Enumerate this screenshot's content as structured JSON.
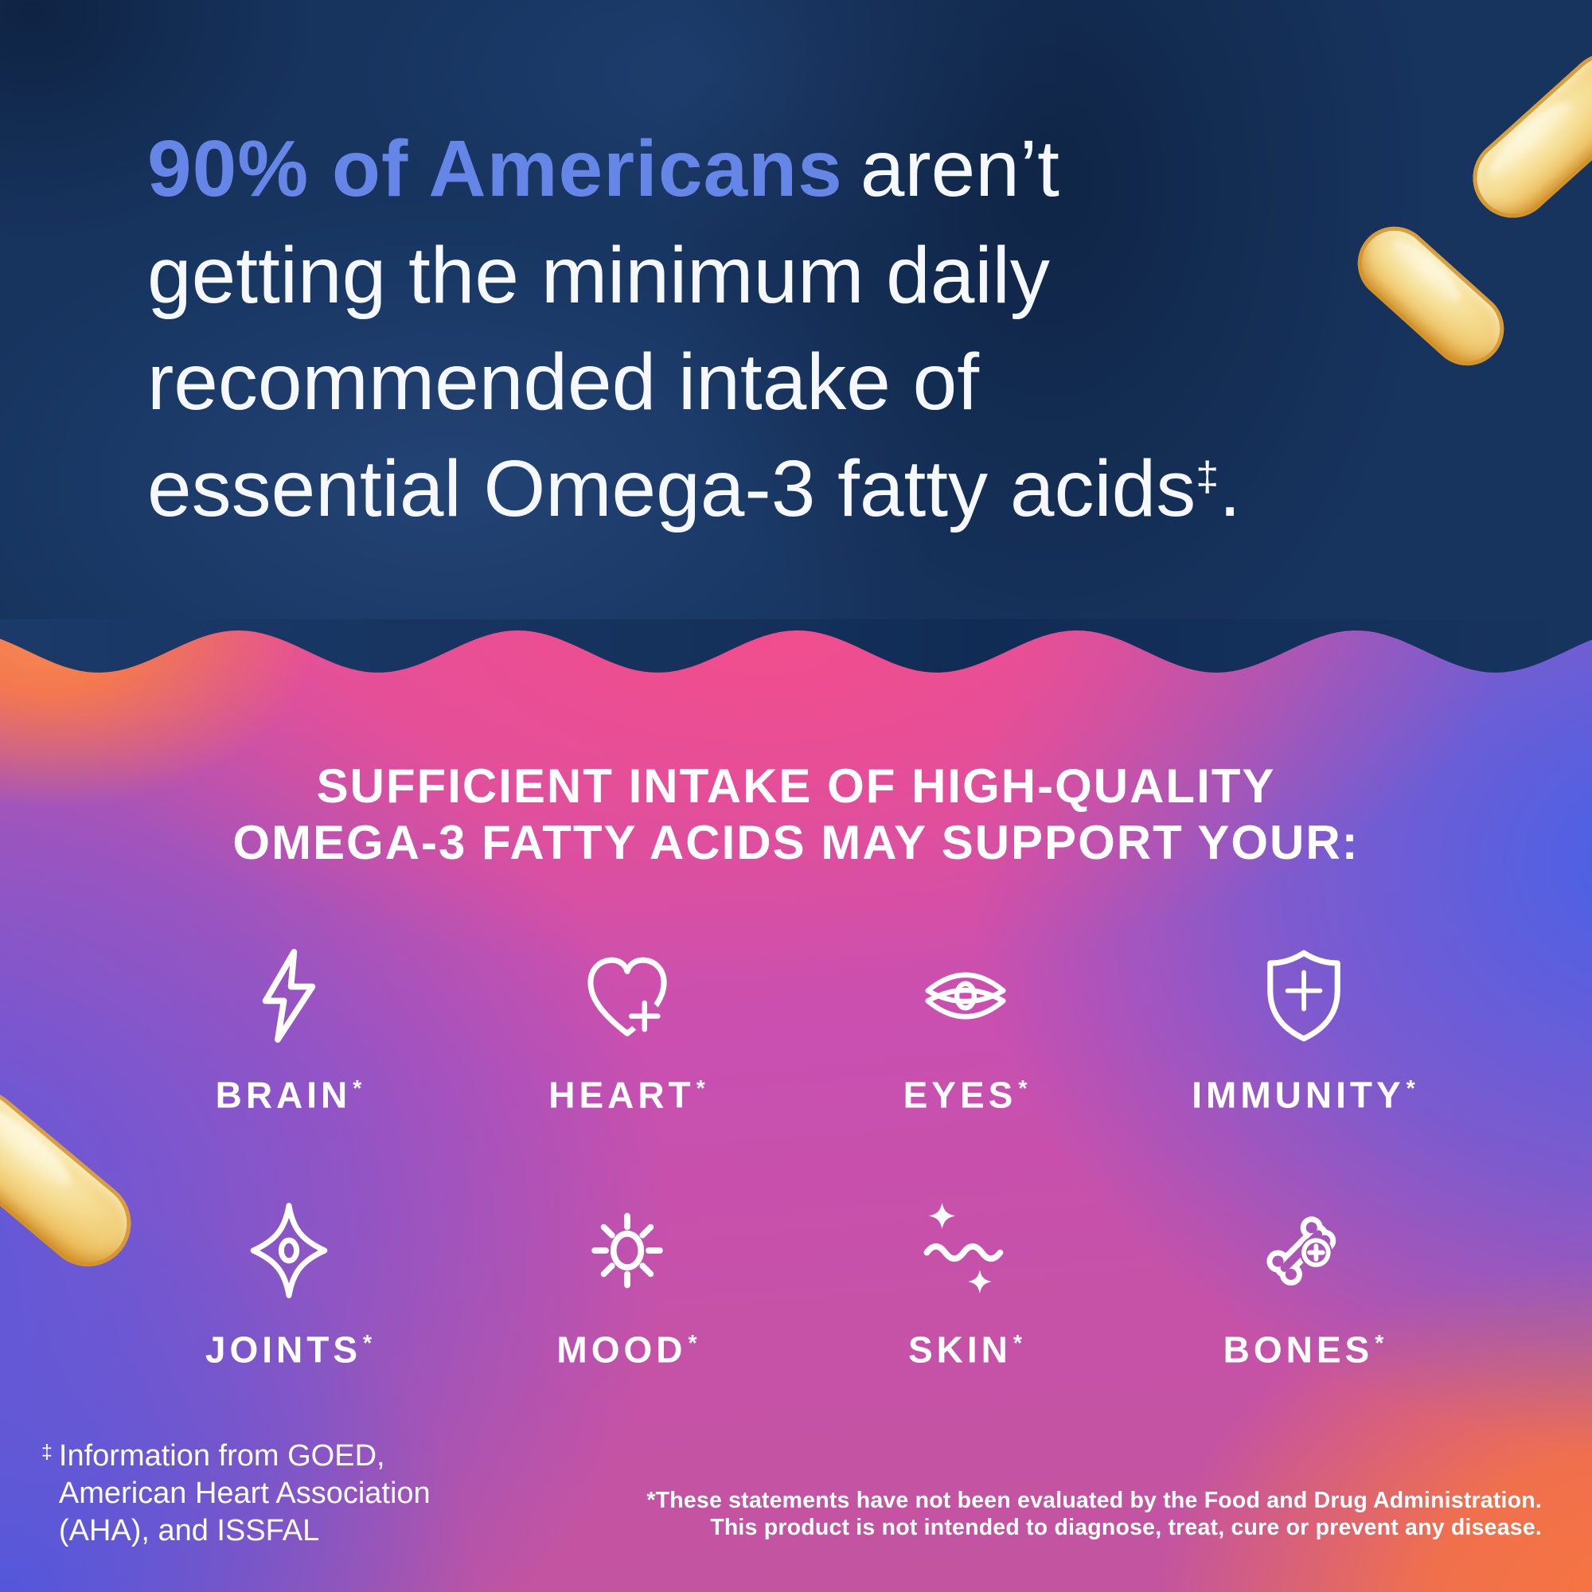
{
  "colors": {
    "navy_background": "#17345F",
    "headline_highlight_blue": "#6586E7",
    "white": "#FFFFFF",
    "gradient_orange_top_left": "#F68A50",
    "gradient_pink": "#F24D8D",
    "gradient_magenta": "#C94FB0",
    "gradient_blue_right": "#3F63EA",
    "gradient_blue_bottom_left": "#4B55DC",
    "gradient_orange_bottom_right": "#F8753E",
    "capsule_gold": "#EFC76C"
  },
  "hero": {
    "highlight": "90% of Americans",
    "line1_rest": "aren’t",
    "line2": "getting the minimum daily",
    "line3": "recommended intake of",
    "line4_pre": "essential Omega-3 fatty acids",
    "dagger": "‡",
    "line4_post": "."
  },
  "support_section": {
    "heading_line1": "SUFFICIENT INTAKE OF HIGH-QUALITY",
    "heading_line2": "OMEGA-3 FATTY ACIDS MAY SUPPORT YOUR:",
    "benefits": [
      {
        "label": "BRAIN",
        "asterisk": "*",
        "icon": "lightning-bolt-icon"
      },
      {
        "label": "HEART",
        "asterisk": "*",
        "icon": "heart-plus-icon"
      },
      {
        "label": "EYES",
        "asterisk": "*",
        "icon": "eye-icon"
      },
      {
        "label": "IMMUNITY",
        "asterisk": "*",
        "icon": "shield-plus-icon"
      },
      {
        "label": "JOINTS",
        "asterisk": "*",
        "icon": "sparkle-star-icon"
      },
      {
        "label": "MOOD",
        "asterisk": "*",
        "icon": "sun-icon"
      },
      {
        "label": "SKIN",
        "asterisk": "*",
        "icon": "wave-sparkles-icon"
      },
      {
        "label": "BONES",
        "asterisk": "*",
        "icon": "bone-plus-icon"
      }
    ]
  },
  "footnotes": {
    "dagger_symbol": "‡",
    "source_line1": "Information from GOED,",
    "source_line2": "American Heart Association",
    "source_line3": "(AHA), and ISSFAL",
    "fda_line1": "*These statements have not been evaluated by the Food and Drug Administration.",
    "fda_line2": "This product is not intended to diagnose, treat, cure or prevent any disease."
  },
  "decor": {
    "capsules": [
      "omega3-softgel-top-right",
      "omega3-softgel-upper-right",
      "omega3-softgel-left-edge"
    ]
  }
}
